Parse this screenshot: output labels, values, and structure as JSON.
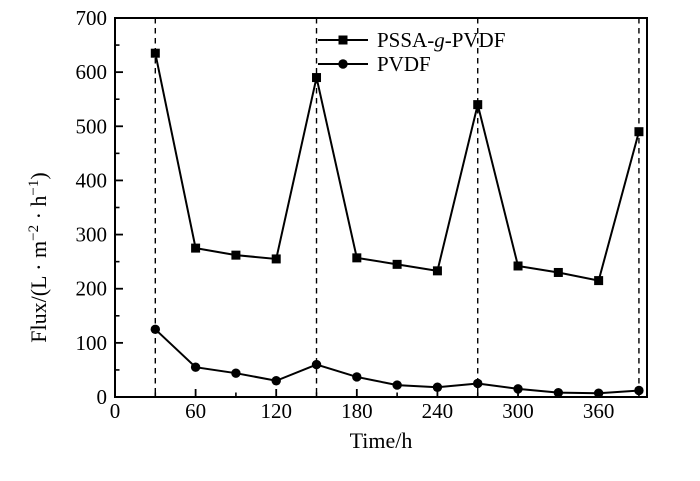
{
  "figure": {
    "background": "#ffffff",
    "ink_color": "#000000"
  },
  "chart_data": {
    "type": "line",
    "title": "",
    "xlabel": "Time/h",
    "ylabel": "Flux/(L · m⁻² · h⁻¹)",
    "ylabel_parts": [
      {
        "text": "Flux/(L"
      },
      {
        "text": " · "
      },
      {
        "text": "m"
      },
      {
        "text": "−2",
        "sup": true
      },
      {
        "text": " · "
      },
      {
        "text": "h"
      },
      {
        "text": "−1",
        "sup": true
      },
      {
        "text": ")"
      }
    ],
    "xlim": [
      0,
      396
    ],
    "ylim": [
      0,
      700
    ],
    "xticks": [
      0,
      60,
      120,
      180,
      240,
      300,
      360
    ],
    "xtick_labels": [
      "0",
      "60",
      "120",
      "180",
      "240",
      "300",
      "360"
    ],
    "x_minor_ticks": [
      30,
      90,
      150,
      210,
      270,
      330,
      390
    ],
    "yticks": [
      0,
      100,
      200,
      300,
      400,
      500,
      600,
      700
    ],
    "ytick_labels": [
      "0",
      "100",
      "200",
      "300",
      "400",
      "500",
      "600",
      "700"
    ],
    "y_minor_ticks": [
      50,
      150,
      250,
      350,
      450,
      550,
      650
    ],
    "grid": false,
    "dashed_vlines": [
      30,
      150,
      270,
      390
    ],
    "x": [
      30,
      60,
      90,
      120,
      150,
      180,
      210,
      240,
      270,
      300,
      330,
      360,
      390
    ],
    "series": [
      {
        "name": "PSSA-g-PVDF",
        "marker": "square",
        "label_parts": [
          {
            "text": "PSSA-"
          },
          {
            "text": "g",
            "italic": true
          },
          {
            "text": "-PVDF"
          }
        ],
        "values": [
          635,
          275,
          262,
          255,
          590,
          257,
          245,
          233,
          540,
          242,
          230,
          215,
          490
        ]
      },
      {
        "name": "PVDF",
        "marker": "circle",
        "label_parts": [
          {
            "text": "PVDF"
          }
        ],
        "values": [
          125,
          55,
          44,
          30,
          60,
          37,
          22,
          18,
          25,
          15,
          8,
          7,
          12
        ]
      }
    ],
    "legend_position": "top-center-inside"
  }
}
